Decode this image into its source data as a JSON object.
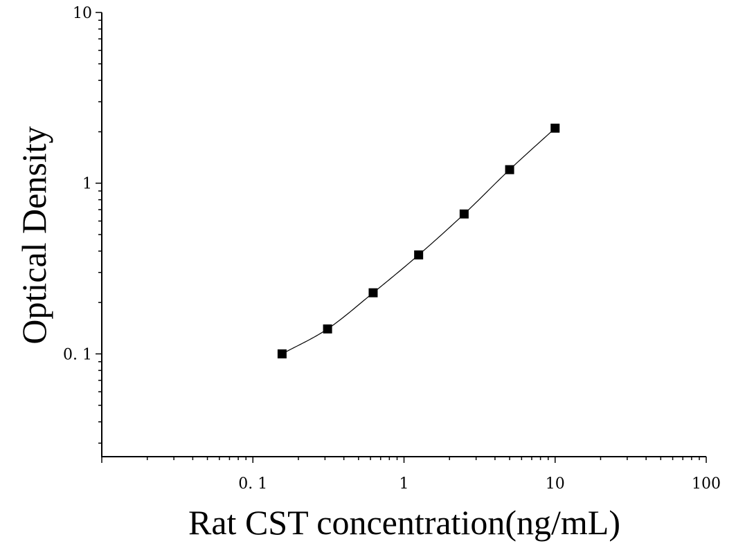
{
  "chart_data": {
    "type": "scatter",
    "title": "",
    "xlabel": "Rat CST concentration(ng/mL)",
    "ylabel": "Optical Density",
    "x_scale": "log",
    "y_scale": "log",
    "xlim": [
      0.01,
      100
    ],
    "ylim": [
      0.025,
      10
    ],
    "x_tick_labels": [
      "0. 1",
      "1",
      "10",
      "100"
    ],
    "x_tick_values": [
      0.1,
      1,
      10,
      100
    ],
    "y_tick_labels": [
      "10",
      "1",
      "0. 1"
    ],
    "y_tick_values": [
      10,
      1,
      0.1
    ],
    "grid": false,
    "legend": "none",
    "marker": "square",
    "marker_color": "#000000",
    "curve_color": "#000000",
    "series": [
      {
        "x": [
          0.156,
          0.312,
          0.625,
          1.25,
          2.5,
          5,
          10
        ],
        "y": [
          0.1,
          0.14,
          0.228,
          0.38,
          0.66,
          1.2,
          2.1
        ]
      }
    ]
  }
}
